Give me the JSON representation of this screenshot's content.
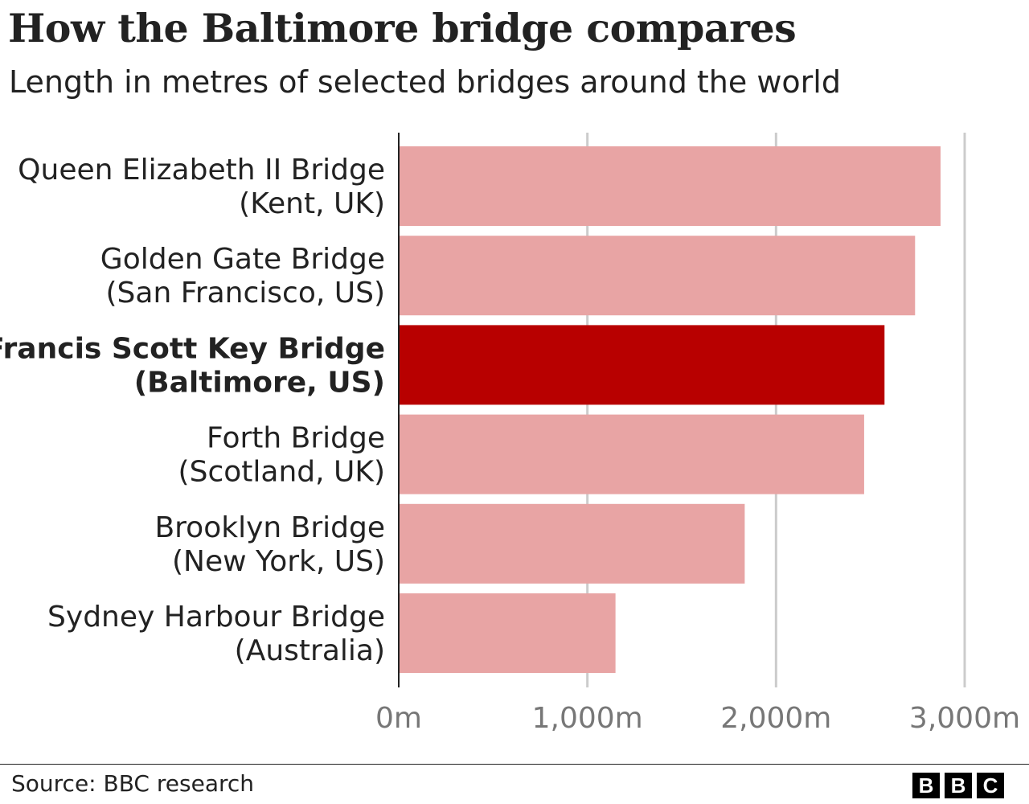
{
  "chart_data": {
    "type": "bar",
    "orientation": "horizontal",
    "title": "How the Baltimore bridge compares",
    "subtitle": "Length in metres of selected bridges around the world",
    "categories": [
      [
        "Queen Elizabeth II Bridge",
        "(Kent, UK)"
      ],
      [
        "Golden Gate Bridge",
        "(San Francisco, US)"
      ],
      [
        "Francis Scott Key Bridge",
        "(Baltimore, US)"
      ],
      [
        "Forth Bridge",
        "(Scotland, UK)"
      ],
      [
        "Brooklyn Bridge",
        "(New York, US)"
      ],
      [
        "Sydney Harbour Bridge",
        "(Australia)"
      ]
    ],
    "values": [
      2872,
      2737,
      2575,
      2467,
      1834,
      1149
    ],
    "highlight_index": 2,
    "xlim": [
      0,
      3000
    ],
    "xticks": [
      0,
      1000,
      2000,
      3000
    ],
    "xtick_labels": [
      "0m",
      "1,000m",
      "2,000m",
      "3,000m"
    ],
    "grid": true,
    "colors": {
      "bar": "#e8a4a4",
      "highlight": "#b80000",
      "grid": "#cccccc",
      "axis": "#222222",
      "tick_label": "#777777"
    }
  },
  "footer": {
    "source": "Source: BBC research",
    "logo": [
      "B",
      "B",
      "C"
    ]
  }
}
